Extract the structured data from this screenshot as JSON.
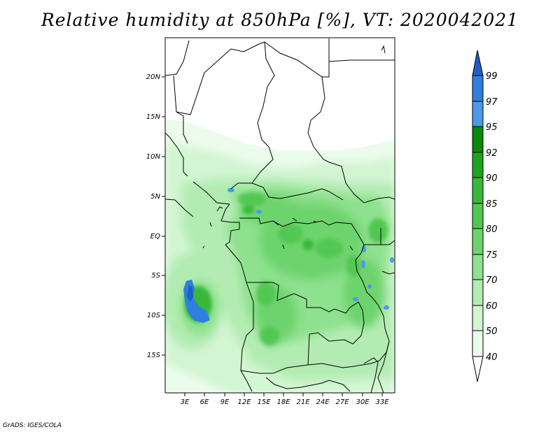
{
  "title": "Relative humidity at 850hPa [%], VT: 2020042021",
  "footer": "GrADS: IGES/COLA",
  "map": {
    "lat_ticks": [
      "20N",
      "15N",
      "10N",
      "5N",
      "EQ",
      "5S",
      "10S",
      "15S"
    ],
    "lon_ticks": [
      "3E",
      "6E",
      "9E",
      "12E",
      "15E",
      "18E",
      "21E",
      "24E",
      "27E",
      "30E",
      "33E"
    ],
    "lon_range": [
      0,
      35
    ],
    "lat_range": [
      -20,
      25
    ]
  },
  "colorbar": {
    "labels": [
      "99",
      "97",
      "95",
      "92",
      "90",
      "85",
      "80",
      "75",
      "70",
      "60",
      "50",
      "40"
    ],
    "colors": [
      "#1f5fc8",
      "#2f7fe0",
      "#4a9aea",
      "#078a07",
      "#1ea31e",
      "#37b837",
      "#52c752",
      "#6dd46d",
      "#8ee18e",
      "#b2ecb2",
      "#d2f5d2",
      "#ecfcec",
      "#ffffff"
    ]
  }
}
